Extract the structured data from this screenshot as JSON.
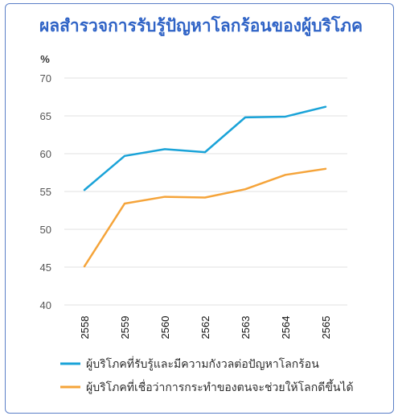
{
  "chart_data": {
    "type": "line",
    "title": "ผลสำรวจการรับรู้ปัญหาโลกร้อนของผู้บริโภค",
    "ylabel": "%",
    "xlabel": "",
    "ylim": [
      40,
      70
    ],
    "yticks": [
      40,
      45,
      50,
      55,
      60,
      65,
      70
    ],
    "x": [
      "2558",
      "2559",
      "2560",
      "2562",
      "2563",
      "2564",
      "2565"
    ],
    "grid": true,
    "legend_position": "bottom",
    "series": [
      {
        "name": "ผู้บริโภคที่รับรู้และมีความกังวลต่อปัญหาโลกร้อน",
        "color": "#1aa3d8",
        "values": [
          55.2,
          59.7,
          60.6,
          60.2,
          64.8,
          64.9,
          66.2
        ]
      },
      {
        "name": "ผู้บริโภคที่เชื่อว่าการกระทำของตนจะช่วยให้โลกดีขึ้นได้",
        "color": "#f5a43a",
        "values": [
          45.1,
          53.4,
          54.3,
          54.2,
          55.3,
          57.2,
          58.0
        ]
      }
    ]
  }
}
